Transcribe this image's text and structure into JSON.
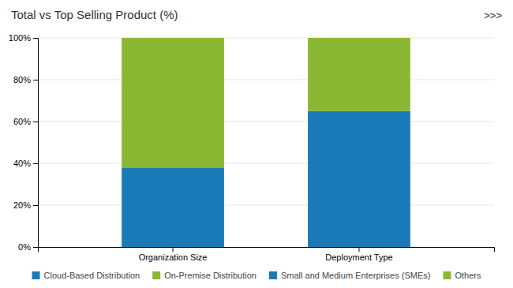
{
  "chart_data": {
    "type": "bar",
    "title": "Total vs Top Selling Product (%)",
    "annotations": [
      ">>>"
    ],
    "categories": [
      "Organization Size",
      "Deployment Type"
    ],
    "series": [
      {
        "name": "Cloud-Based Distribution",
        "color": "#1a7ab8",
        "values": [
          38,
          65
        ]
      },
      {
        "name": "On-Premise Distribution",
        "color": "#8ab832",
        "values": [
          62,
          35
        ]
      }
    ],
    "legend_items": [
      {
        "label": "Cloud-Based Distribution",
        "color": "#1a7ab8"
      },
      {
        "label": "On-Premise Distribution",
        "color": "#8ab832"
      },
      {
        "label": "Small and Medium Enterprises (SMEs)",
        "color": "#1a7ab8"
      },
      {
        "label": "Others",
        "color": "#8ab832"
      }
    ],
    "stacked": true,
    "ylim": [
      0,
      100
    ],
    "yticks": [
      {
        "value": 0,
        "label": "0%"
      },
      {
        "value": 20,
        "label": "20%"
      },
      {
        "value": 40,
        "label": "40%"
      },
      {
        "value": 60,
        "label": "60%"
      },
      {
        "value": 80,
        "label": "80%"
      },
      {
        "value": 100,
        "label": "100%"
      }
    ],
    "grid": true,
    "legend": "bottom"
  }
}
